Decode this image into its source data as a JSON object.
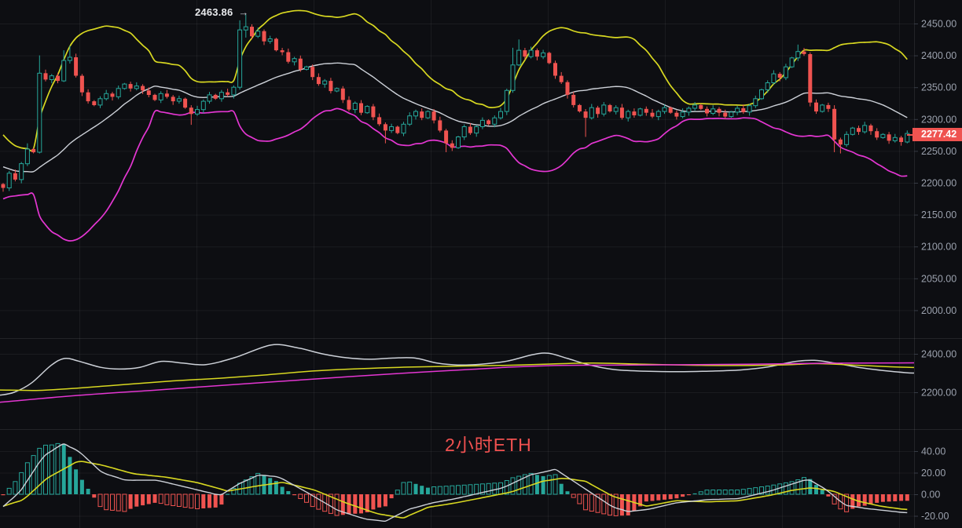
{
  "colors": {
    "background": "#0d0e12",
    "grid": "rgba(255,255,255,0.055)",
    "panel_divider": "rgba(255,255,255,0.09)",
    "up": "#26a69a",
    "down": "#ef5350",
    "boll_upper": "#d8d821",
    "boll_mid": "#cdd1d8",
    "boll_lower": "#e436d2",
    "axis_text": "#9ba1ad",
    "tick_mark": "#363b45",
    "badge_bg": "#ef5350",
    "badge_text": "#ffffff",
    "annotation_text": "#e8eaed",
    "symbol_text": "#f05150",
    "macd_dif": "#cdd1d8",
    "macd_dea": "#d8d821"
  },
  "annotation": {
    "text": "2463.86",
    "arrow": "→"
  },
  "last_price": {
    "value": "2277.42"
  },
  "symbol_label": "2小时ETH",
  "axes": {
    "main": {
      "labels": [
        "2450.00",
        "2400.00",
        "2350.00",
        "2300.00",
        "2250.00",
        "2200.00",
        "2150.00",
        "2100.00",
        "2050.00",
        "2000.00"
      ],
      "values": [
        2450,
        2400,
        2350,
        2300,
        2250,
        2200,
        2150,
        2100,
        2050,
        2000
      ]
    },
    "middle": {
      "labels": [
        "2400.00",
        "2200.00"
      ],
      "values": [
        2400,
        2200
      ]
    },
    "macd": {
      "labels": [
        "40.00",
        "20.00",
        "0.00",
        "-20.00"
      ],
      "values": [
        40,
        20,
        0,
        -20
      ]
    }
  },
  "chart_data": {
    "type": "bar",
    "subtype": "candlestick-with-indicators",
    "panels": [
      "price+bollinger(20,2)",
      "moving-averages",
      "macd(dif,dea,hist)"
    ],
    "price_axis_visible_range": [
      1957,
      2487
    ],
    "ma_axis_visible_range": [
      2127,
      2477
    ],
    "macd_axis_visible_range": [
      -31,
      56
    ],
    "grid": true,
    "peak_annotation_value": 2463.86,
    "last_price_value": 2277.42,
    "candles": {
      "count": 150,
      "first_open": 2198,
      "closes": [
        2192,
        2215,
        2205,
        2230,
        2253,
        2248,
        2372,
        2362,
        2368,
        2360,
        2392,
        2397,
        2368,
        2342,
        2328,
        2322,
        2332,
        2340,
        2335,
        2348,
        2355,
        2348,
        2352,
        2345,
        2338,
        2330,
        2340,
        2335,
        2328,
        2332,
        2318,
        2308,
        2315,
        2328,
        2338,
        2332,
        2342,
        2338,
        2350,
        2440,
        2445,
        2430,
        2438,
        2422,
        2426,
        2408,
        2405,
        2390,
        2395,
        2378,
        2382,
        2366,
        2355,
        2360,
        2344,
        2348,
        2330,
        2315,
        2325,
        2310,
        2320,
        2303,
        2292,
        2282,
        2288,
        2278,
        2292,
        2305,
        2312,
        2302,
        2312,
        2298,
        2282,
        2262,
        2255,
        2272,
        2288,
        2278,
        2288,
        2298,
        2292,
        2302,
        2312,
        2345,
        2385,
        2408,
        2398,
        2408,
        2398,
        2404,
        2388,
        2368,
        2358,
        2338,
        2322,
        2312,
        2302,
        2318,
        2308,
        2322,
        2312,
        2318,
        2302,
        2312,
        2306,
        2316,
        2310,
        2304,
        2312,
        2318,
        2310,
        2304,
        2311,
        2317,
        2322,
        2316,
        2309,
        2316,
        2310,
        2304,
        2311,
        2317,
        2311,
        2321,
        2332,
        2346,
        2357,
        2371,
        2365,
        2382,
        2396,
        2406,
        2402,
        2326,
        2312,
        2322,
        2316,
        2268,
        2260,
        2276,
        2286,
        2280,
        2290,
        2281,
        2271,
        2276,
        2266,
        2271,
        2264,
        2277.42
      ],
      "pre_closes": [
        2290,
        2280,
        2265,
        2250,
        2258,
        2248,
        2238,
        2228,
        2242,
        2230,
        2220,
        2212,
        2222,
        2215,
        2205,
        2198,
        2208,
        2202,
        2192,
        2196
      ],
      "wick_overrides": {
        "0": {
          "low": 2186
        },
        "4": {
          "high": 2262
        },
        "6": {
          "high": 2400,
          "low": 2246
        },
        "10": {
          "high": 2408
        },
        "11": {
          "high": 2415
        },
        "31": {
          "low": 2291
        },
        "39": {
          "high": 2455
        },
        "40": {
          "high": 2463.86,
          "low": 2428
        },
        "63": {
          "low": 2262
        },
        "73": {
          "low": 2248
        },
        "74": {
          "low": 2250
        },
        "84": {
          "high": 2412
        },
        "85": {
          "high": 2425
        },
        "96": {
          "low": 2272
        },
        "131": {
          "high": 2417
        },
        "133": {
          "low": 2320
        },
        "137": {
          "low": 2248
        },
        "138": {
          "low": 2246
        },
        "149": {
          "low": 2262
        }
      }
    },
    "bollinger": {
      "period": 20,
      "stddev_mult": 2
    },
    "ma_panel_series": [
      {
        "name": "fast-ma",
        "color_key": "boll_mid",
        "points": [
          [
            0,
            2185
          ],
          [
            18,
            2200
          ],
          [
            40,
            2248
          ],
          [
            65,
            2340
          ],
          [
            82,
            2376
          ],
          [
            100,
            2362
          ],
          [
            128,
            2330
          ],
          [
            152,
            2321
          ],
          [
            178,
            2330
          ],
          [
            205,
            2361
          ],
          [
            232,
            2352
          ],
          [
            262,
            2344
          ],
          [
            300,
            2382
          ],
          [
            345,
            2446
          ],
          [
            378,
            2432
          ],
          [
            410,
            2400
          ],
          [
            440,
            2380
          ],
          [
            470,
            2372
          ],
          [
            500,
            2378
          ],
          [
            528,
            2378
          ],
          [
            556,
            2352
          ],
          [
            582,
            2342
          ],
          [
            612,
            2346
          ],
          [
            645,
            2362
          ],
          [
            678,
            2396
          ],
          [
            698,
            2403
          ],
          [
            722,
            2376
          ],
          [
            750,
            2342
          ],
          [
            782,
            2318
          ],
          [
            820,
            2310
          ],
          [
            862,
            2307
          ],
          [
            902,
            2310
          ],
          [
            942,
            2316
          ],
          [
            976,
            2331
          ],
          [
            1010,
            2359
          ],
          [
            1036,
            2366
          ],
          [
            1062,
            2352
          ],
          [
            1092,
            2330
          ],
          [
            1122,
            2314
          ],
          [
            1152,
            2302
          ],
          [
            1163,
            2300
          ]
        ]
      },
      {
        "name": "mid-ma",
        "color_key": "boll_upper",
        "points": [
          [
            0,
            2212
          ],
          [
            50,
            2210
          ],
          [
            100,
            2222
          ],
          [
            160,
            2241
          ],
          [
            220,
            2259
          ],
          [
            280,
            2273
          ],
          [
            340,
            2291
          ],
          [
            400,
            2311
          ],
          [
            460,
            2323
          ],
          [
            520,
            2331
          ],
          [
            580,
            2336
          ],
          [
            640,
            2340
          ],
          [
            700,
            2347
          ],
          [
            755,
            2352
          ],
          [
            820,
            2346
          ],
          [
            880,
            2341
          ],
          [
            940,
            2339
          ],
          [
            1000,
            2343
          ],
          [
            1040,
            2349
          ],
          [
            1090,
            2341
          ],
          [
            1130,
            2333
          ],
          [
            1163,
            2329
          ]
        ]
      },
      {
        "name": "slow-ma",
        "color_key": "boll_lower",
        "points": [
          [
            0,
            2148
          ],
          [
            100,
            2184
          ],
          [
            200,
            2212
          ],
          [
            300,
            2241
          ],
          [
            400,
            2269
          ],
          [
            500,
            2296
          ],
          [
            600,
            2319
          ],
          [
            650,
            2331
          ],
          [
            705,
            2339
          ],
          [
            760,
            2341
          ],
          [
            850,
            2343
          ],
          [
            950,
            2346
          ],
          [
            1050,
            2351
          ],
          [
            1163,
            2353
          ]
        ]
      }
    ],
    "macd_panel": {
      "histogram_rule": "2*(dif-dea)",
      "dif_points": [
        [
          0,
          -14
        ],
        [
          25,
          2
        ],
        [
          55,
          35
        ],
        [
          80,
          47
        ],
        [
          100,
          40
        ],
        [
          130,
          20
        ],
        [
          160,
          13
        ],
        [
          200,
          13
        ],
        [
          240,
          6
        ],
        [
          280,
          -1
        ],
        [
          305,
          10
        ],
        [
          330,
          18
        ],
        [
          355,
          16
        ],
        [
          390,
          2
        ],
        [
          430,
          -15
        ],
        [
          465,
          -23
        ],
        [
          490,
          -25
        ],
        [
          520,
          -14
        ],
        [
          550,
          -8
        ],
        [
          580,
          -4
        ],
        [
          610,
          1
        ],
        [
          640,
          6
        ],
        [
          675,
          18
        ],
        [
          707,
          23
        ],
        [
          730,
          12
        ],
        [
          755,
          0
        ],
        [
          780,
          -12
        ],
        [
          800,
          -16
        ],
        [
          825,
          -14
        ],
        [
          860,
          -8
        ],
        [
          900,
          -5
        ],
        [
          940,
          -4
        ],
        [
          980,
          3
        ],
        [
          1010,
          10
        ],
        [
          1028,
          14
        ],
        [
          1050,
          5
        ],
        [
          1075,
          -10
        ],
        [
          1100,
          -13
        ],
        [
          1125,
          -15
        ],
        [
          1150,
          -17
        ],
        [
          1163,
          -17
        ]
      ],
      "dea_points": [
        [
          0,
          -12
        ],
        [
          30,
          -5
        ],
        [
          60,
          15
        ],
        [
          100,
          31
        ],
        [
          130,
          27
        ],
        [
          170,
          19
        ],
        [
          210,
          16
        ],
        [
          250,
          11
        ],
        [
          290,
          3
        ],
        [
          330,
          8
        ],
        [
          360,
          11
        ],
        [
          400,
          4
        ],
        [
          440,
          -8
        ],
        [
          480,
          -18
        ],
        [
          513,
          -22
        ],
        [
          545,
          -12
        ],
        [
          580,
          -8
        ],
        [
          615,
          -3
        ],
        [
          650,
          2
        ],
        [
          690,
          12
        ],
        [
          717,
          15
        ],
        [
          745,
          12
        ],
        [
          780,
          -2
        ],
        [
          823,
          -11
        ],
        [
          860,
          -6
        ],
        [
          900,
          -7
        ],
        [
          940,
          -6
        ],
        [
          980,
          -1
        ],
        [
          1010,
          4
        ],
        [
          1033,
          6
        ],
        [
          1060,
          3
        ],
        [
          1090,
          -6
        ],
        [
          1120,
          -11
        ],
        [
          1150,
          -14
        ],
        [
          1163,
          -14
        ]
      ]
    }
  }
}
